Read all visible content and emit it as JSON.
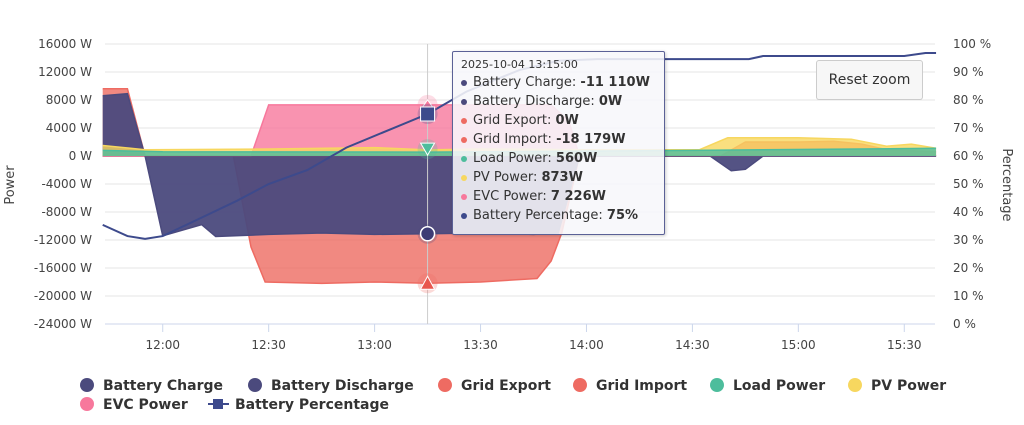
{
  "chart_data": {
    "type": "area",
    "xlabel": "",
    "ylabel": "Power",
    "ylabel_right": "Percentage",
    "ylim": [
      -24000,
      16000
    ],
    "ylim_right": [
      0,
      100
    ],
    "xlim": [
      "11:43",
      "15:39"
    ],
    "y_ticks": [
      "16000 W",
      "12000 W",
      "8000 W",
      "4000 W",
      "0 W",
      "-4000 W",
      "-8000 W",
      "-12000 W",
      "-16000 W",
      "-20000 W",
      "-24000 W"
    ],
    "y_tick_values": [
      16000,
      12000,
      8000,
      4000,
      0,
      -4000,
      -8000,
      -12000,
      -16000,
      -20000,
      -24000
    ],
    "y_right_ticks": [
      "100 %",
      "90 %",
      "80 %",
      "70 %",
      "60 %",
      "50 %",
      "40 %",
      "30 %",
      "20 %",
      "10 %",
      "0 %"
    ],
    "y_right_tick_values": [
      100,
      90,
      80,
      70,
      60,
      50,
      40,
      30,
      20,
      10,
      0
    ],
    "x_ticks": [
      "12:00",
      "12:30",
      "13:00",
      "13:30",
      "14:00",
      "14:30",
      "15:00",
      "15:30"
    ],
    "grid": true,
    "legend_position": "bottom",
    "series": [
      {
        "name": "Battery Charge",
        "color": "#4b4a7d",
        "values": [
          [
            "11:43",
            0
          ],
          [
            "11:55",
            0
          ],
          [
            "12:00",
            -11400
          ],
          [
            "12:11",
            -9800
          ],
          [
            "12:15",
            -11500
          ],
          [
            "12:30",
            -11200
          ],
          [
            "12:45",
            -11000
          ],
          [
            "13:00",
            -11200
          ],
          [
            "13:15",
            -11110
          ],
          [
            "13:30",
            -11000
          ],
          [
            "13:45",
            -11200
          ],
          [
            "13:52",
            -11000
          ],
          [
            "13:58",
            0
          ],
          [
            "14:35",
            0
          ],
          [
            "14:41",
            -2100
          ],
          [
            "14:45",
            -1900
          ],
          [
            "14:50",
            0
          ],
          [
            "15:39",
            0
          ]
        ]
      },
      {
        "name": "Battery Discharge",
        "color": "#4b4a7d",
        "values": [
          [
            "11:43",
            8600
          ],
          [
            "11:50",
            8900
          ],
          [
            "11:55",
            0
          ],
          [
            "15:39",
            0
          ]
        ]
      },
      {
        "name": "Grid Export",
        "color": "#ee6b62",
        "values": [
          [
            "11:43",
            9600
          ],
          [
            "11:50",
            9600
          ],
          [
            "11:55",
            0
          ],
          [
            "14:38",
            0
          ],
          [
            "14:45",
            2000
          ],
          [
            "15:00",
            2000
          ],
          [
            "15:10",
            2100
          ],
          [
            "15:18",
            1700
          ],
          [
            "15:25",
            900
          ],
          [
            "15:39",
            600
          ]
        ]
      },
      {
        "name": "Grid Import",
        "color": "#ee6b62",
        "values": [
          [
            "11:43",
            0
          ],
          [
            "12:20",
            0
          ],
          [
            "12:25",
            -13000
          ],
          [
            "12:29",
            -18000
          ],
          [
            "12:45",
            -18200
          ],
          [
            "13:00",
            -18000
          ],
          [
            "13:15",
            -18179
          ],
          [
            "13:30",
            -18000
          ],
          [
            "13:46",
            -17500
          ],
          [
            "13:50",
            -15000
          ],
          [
            "13:53",
            -11000
          ],
          [
            "13:58",
            0
          ],
          [
            "15:39",
            0
          ]
        ]
      },
      {
        "name": "Load Power",
        "color": "#4dbd9c",
        "values": [
          [
            "11:43",
            800
          ],
          [
            "12:00",
            600
          ],
          [
            "13:15",
            560
          ],
          [
            "14:00",
            700
          ],
          [
            "14:30",
            800
          ],
          [
            "15:39",
            1100
          ]
        ]
      },
      {
        "name": "PV Power",
        "color": "#f7d75f",
        "values": [
          [
            "11:43",
            1500
          ],
          [
            "11:55",
            900
          ],
          [
            "12:30",
            1000
          ],
          [
            "13:00",
            1200
          ],
          [
            "13:15",
            873
          ],
          [
            "13:30",
            1000
          ],
          [
            "14:00",
            900
          ],
          [
            "14:32",
            900
          ],
          [
            "14:40",
            2600
          ],
          [
            "15:00",
            2600
          ],
          [
            "15:15",
            2400
          ],
          [
            "15:25",
            1400
          ],
          [
            "15:32",
            1700
          ],
          [
            "15:39",
            1100
          ]
        ]
      },
      {
        "name": "EVC Power",
        "color": "#f7789c",
        "values": [
          [
            "11:43",
            0
          ],
          [
            "12:25",
            0
          ],
          [
            "12:30",
            7300
          ],
          [
            "13:50",
            7300
          ],
          [
            "13:55",
            5000
          ],
          [
            "13:58",
            0
          ],
          [
            "15:39",
            0
          ]
        ]
      },
      {
        "name": "Battery Percentage",
        "color": "#3d4a8c",
        "axis": "right",
        "values": [
          [
            "11:43",
            35.4
          ],
          [
            "11:50",
            31.4
          ],
          [
            "11:55",
            30.4
          ],
          [
            "12:00",
            31.4
          ],
          [
            "12:11",
            38
          ],
          [
            "12:21",
            44
          ],
          [
            "12:30",
            50
          ],
          [
            "12:41",
            55
          ],
          [
            "12:52",
            63
          ],
          [
            "13:15",
            75
          ],
          [
            "13:26",
            83
          ],
          [
            "13:41",
            90.7
          ],
          [
            "13:52",
            94
          ],
          [
            "14:03",
            94.6
          ],
          [
            "14:46",
            94.6
          ],
          [
            "14:50",
            95.7
          ],
          [
            "15:30",
            95.7
          ],
          [
            "15:36",
            96.8
          ],
          [
            "15:39",
            96.8
          ]
        ]
      }
    ]
  },
  "tooltip": {
    "time": "2025-10-04 13:15:00",
    "rows": [
      {
        "label": "Battery Charge: ",
        "value": "-11 110W",
        "color": "#4b4a7d"
      },
      {
        "label": "Battery Discharge: ",
        "value": "0W",
        "color": "#4b4a7d"
      },
      {
        "label": "Grid Export: ",
        "value": "0W",
        "color": "#ee6b62"
      },
      {
        "label": "Grid Import: ",
        "value": "-18 179W",
        "color": "#ee6b62"
      },
      {
        "label": "Load Power: ",
        "value": "560W",
        "color": "#4dbd9c"
      },
      {
        "label": "PV Power: ",
        "value": "873W",
        "color": "#f7d75f"
      },
      {
        "label": "EVC Power: ",
        "value": "7 226W",
        "color": "#f7789c"
      },
      {
        "label": "Battery Percentage: ",
        "value": "75%",
        "color": "#3d4a8c"
      }
    ]
  },
  "hover_time": "13:15",
  "reset_zoom_label": "Reset zoom"
}
